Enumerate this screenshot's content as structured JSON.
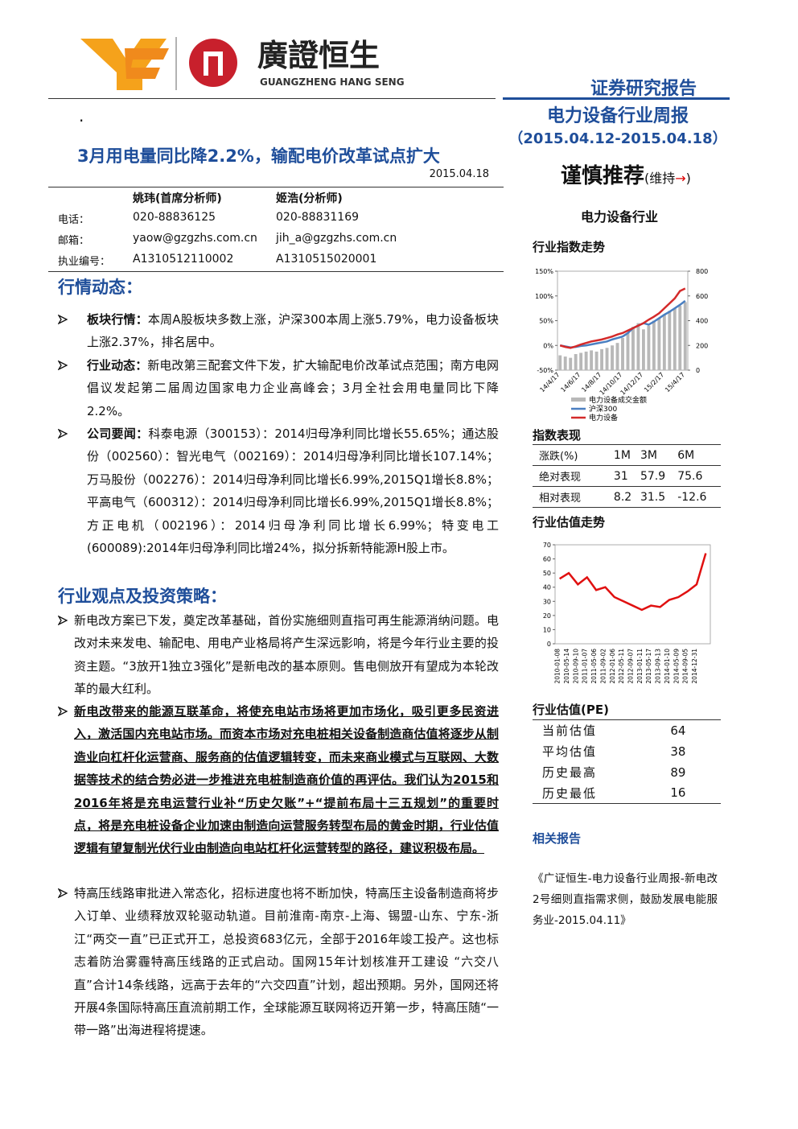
{
  "header": {
    "logo_cn": "廣證恒生",
    "logo_en": "GUANGZHENG HANG SENG",
    "report_type": "证券研究报告",
    "report_name": "电力设备行业周报",
    "period": "（2015.04.12-2015.04.18）",
    "rating": "谨慎推荐",
    "rating_note_pre": "(维持",
    "rating_arrow": "→",
    "rating_note_post": ")",
    "sector": "电力设备行业"
  },
  "title": "3月用电量同比降2.2%，输配电价改革试点扩大",
  "date": "2015.04.18",
  "analysts": {
    "header": [
      "姚玮(首席分析师)",
      "姬浩(分析师)"
    ],
    "rows": [
      [
        "电话：",
        "020-88836125",
        "020-88831169"
      ],
      [
        "邮箱：",
        "yaow@gzgzhs.com.cn",
        "jih_a@gzgzhs.com.cn"
      ],
      [
        "执业编号：",
        "A1310512110002",
        "A1310515020001"
      ]
    ]
  },
  "sections": [
    {
      "heading": "行情动态：",
      "items": [
        {
          "lead": "板块行情：",
          "text": "本周A股板块多数上涨，沪深300本周上涨5.79%，电力设备板块上涨2.37%，排名居中。"
        },
        {
          "lead": "行业动态：",
          "text": "新电改第三配套文件下发，扩大输配电价改革试点范围；南方电网倡议发起第二届周边国家电力企业高峰会；3月全社会用电量同比下降2.2%。"
        },
        {
          "lead": "公司要闻：",
          "text": "科泰电源（300153）：2014归母净利同比增长55.65%；通达股份（002560）：智光电气（002169）：2014归母净利同比增长107.14%；万马股份（002276）：2014归母净利同比增长6.99%,2015Q1增长8.8%；平高电气（600312）：2014归母净利同比增长6.99%,2015Q1增长8.8%；方正电机（002196）：2014归母净利同比增长6.99%；特变电工(600089):2014年归母净利同比增24%，拟分拆新特能源H股上市。"
        }
      ]
    },
    {
      "heading": "行业观点及投资策略：",
      "items": [
        {
          "text": "新电改方案已下发，奠定改革基础，首份实施细则直指可再生能源消纳问题。电改对未来发电、输配电、用电产业格局将产生深远影响，将是今年行业主要的投资主题。“3放开1独立3强化”是新电改的基本原则。售电侧放开有望成为本轮改革的最大红利。"
        },
        {
          "text": "新电改带来的能源互联革命，将使充电站市场将更加市场化，吸引更多民资进入，激活国内充电站市场。而资本市场对充电桩相关设备制造商估值将逐步从制造业向杠杆化运营商、服务商的估值逻辑转变，而未来商业模式与互联网、大数据等技术的结合势必进一步推进充电桩制造商价值的再评估。我们认为2015和2016年将是充电运营行业补“历史欠账”+“提前布局十三五规划”的重要时点，将是充电桩设备企业加速由制造向运营服务转型布局的黄金时期，行业估值逻辑有望复制光伏行业由制造向电站杠杆化运营转型的路径，建议积极布局。",
          "emphasis": true
        },
        {
          "text": "特高压线路审批进入常态化，招标进度也将不断加快，特高压主设备制造商将步入订单、业绩释放双轮驱动轨道。目前淮南-南京-上海、锡盟-山东、宁东-浙江“两交一直”已正式开工，总投资683亿元，全部于2016年竣工投产。这也标志着防治雾霾特高压线路的正式启动。国网15年计划核准开工建设 “六交八直”合计14条线路，远高于去年的“六交四直”计划，超出预期。另外，国网还将开展4条国际特高压直流前期工作，全球能源互联网将迈开第一步，特高压随“一带一路”出海进程将提速。"
        }
      ]
    }
  ],
  "sidebar": {
    "index_chart_title": "行业指数走势",
    "index_chart": {
      "type": "line",
      "categories": [
        "14/4/17",
        null,
        null,
        null,
        "14/6/17",
        null,
        null,
        null,
        "14/8/17",
        null,
        null,
        null,
        "14/10/17",
        null,
        null,
        null,
        "14/12/17",
        null,
        null,
        null,
        "15/2/17",
        null,
        null,
        null,
        "15/4/17"
      ],
      "ylim": [
        -50,
        150
      ],
      "yticks": [
        {
          "value": 150,
          "label": "150%"
        },
        {
          "value": 100,
          "label": "100%"
        },
        {
          "value": 50,
          "label": "50%"
        },
        {
          "value": 0,
          "label": "0%"
        },
        {
          "value": -50,
          "label": "-50%"
        }
      ],
      "y2lim": [
        0,
        800
      ],
      "y2ticks": [
        800,
        600,
        400,
        200,
        0
      ],
      "series": [
        {
          "name": "电力设备成交金额",
          "type": "bar",
          "axis": "y2",
          "color": "#b8b8b8",
          "values": [
            120,
            110,
            100,
            130,
            140,
            150,
            160,
            150,
            170,
            180,
            200,
            220,
            260,
            300,
            350,
            380,
            330,
            360,
            400,
            420,
            450,
            480,
            500,
            520,
            550
          ]
        },
        {
          "name": "沪深300",
          "color": "#4a7fc1",
          "values": [
            0,
            -2,
            -4,
            -3,
            -1,
            0,
            2,
            4,
            6,
            8,
            12,
            15,
            18,
            25,
            35,
            40,
            45,
            42,
            48,
            55,
            62,
            68,
            75,
            82,
            90
          ]
        },
        {
          "name": "电力设备",
          "color": "#d42a2a",
          "values": [
            0,
            -3,
            -5,
            -2,
            2,
            5,
            8,
            10,
            12,
            15,
            18,
            22,
            25,
            30,
            35,
            40,
            45,
            52,
            58,
            65,
            75,
            85,
            95,
            110,
            115
          ]
        }
      ]
    },
    "perf": {
      "title": "指数表现",
      "rows": [
        [
          "涨跌(%)",
          "1M",
          "3M",
          "6M"
        ],
        [
          "绝对表现",
          "31",
          "57.9",
          "75.6"
        ],
        [
          "相对表现",
          "8.2",
          "31.5",
          "-12.6"
        ]
      ]
    },
    "val_chart_title": "行业估值走势",
    "val_chart": {
      "type": "line",
      "categories": [
        "2010-01-08",
        "2010-05-14",
        "2010-09-10",
        "2011-01-07",
        "2011-05-06",
        "2011-09-02",
        "2012-01-06",
        "2012-05-11",
        "2012-09-07",
        "2013-01-11",
        "2013-05-17",
        "2013-09-13",
        "2014-01-10",
        "2014-05-09",
        "2014-09-05",
        "2014-12-31",
        null
      ],
      "ylim": [
        0,
        70
      ],
      "yticks": [
        70,
        60,
        50,
        40,
        30,
        20,
        10,
        0
      ],
      "series": [
        {
          "color": "#e01010",
          "values": [
            46,
            50,
            42,
            47,
            38,
            40,
            33,
            30,
            27,
            24,
            27,
            26,
            31,
            33,
            37,
            42,
            64
          ]
        }
      ]
    },
    "pe": {
      "title": "行业估值(PE)",
      "rows": [
        [
          "当前估值",
          "64"
        ],
        [
          "平均估值",
          "38"
        ],
        [
          "历史最高",
          "89"
        ],
        [
          "历史最低",
          "16"
        ]
      ]
    },
    "related": {
      "title": "相关报告",
      "items": [
        "《广证恒生-电力设备行业周报-新电改2号细则直指需求侧，鼓励发展电能服务业-2015.04.11》"
      ]
    }
  }
}
